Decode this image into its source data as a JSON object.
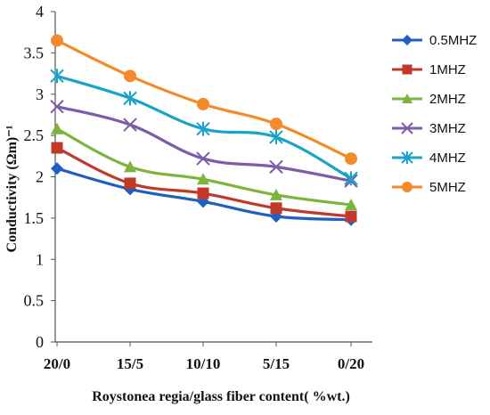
{
  "chart_data": {
    "type": "line",
    "title": "",
    "xlabel": "Roystonea regia/glass fiber content( %wt.)",
    "ylabel": "Conductivity (Ωm)⁻¹",
    "categories": [
      "20/0",
      "15/5",
      "10/10",
      "5/15",
      "0/20"
    ],
    "ylim": [
      0,
      4
    ],
    "yticks": [
      "0",
      "0.5",
      "1",
      "1.5",
      "2",
      "2.5",
      "3",
      "3.5",
      "4"
    ],
    "grid": false,
    "legend_position": "right",
    "series": [
      {
        "name": "0.5MHZ",
        "color": "#1f5fbf",
        "marker": "diamond",
        "values": [
          2.1,
          1.85,
          1.7,
          1.52,
          1.48
        ]
      },
      {
        "name": "1MHZ",
        "color": "#c0392b",
        "marker": "square",
        "values": [
          2.35,
          1.92,
          1.8,
          1.62,
          1.52
        ]
      },
      {
        "name": "2MHZ",
        "color": "#7cb53b",
        "marker": "triangle",
        "values": [
          2.58,
          2.12,
          1.97,
          1.78,
          1.66
        ]
      },
      {
        "name": "3MHZ",
        "color": "#7d5ca8",
        "marker": "x",
        "values": [
          2.85,
          2.63,
          2.22,
          2.12,
          1.95
        ]
      },
      {
        "name": "4MHZ",
        "color": "#1aa3c8",
        "marker": "asterisk",
        "values": [
          3.22,
          2.95,
          2.58,
          2.48,
          1.98
        ]
      },
      {
        "name": "5MHZ",
        "color": "#f58a2a",
        "marker": "circle",
        "values": [
          3.65,
          3.22,
          2.88,
          2.64,
          2.22
        ]
      }
    ]
  }
}
